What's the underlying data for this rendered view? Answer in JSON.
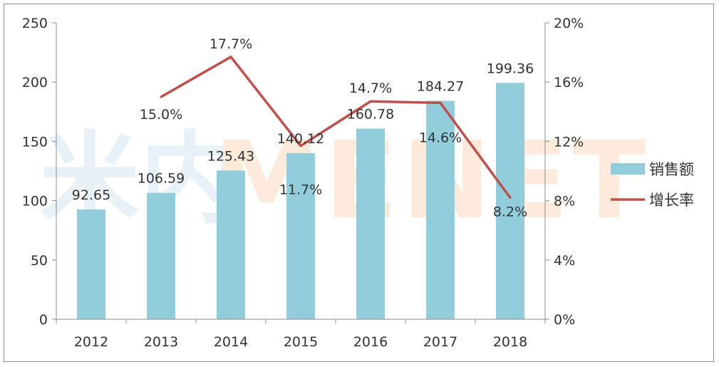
{
  "chart_data": {
    "type": "bar",
    "categories": [
      "2012",
      "2013",
      "2014",
      "2015",
      "2016",
      "2017",
      "2018"
    ],
    "series": [
      {
        "name": "销售额",
        "type": "bar",
        "axis": "left",
        "values": [
          92.65,
          106.59,
          125.43,
          140.12,
          160.78,
          184.27,
          199.36
        ],
        "labels": [
          "92.65",
          "106.59",
          "125.43",
          "140.12",
          "160.78",
          "184.27",
          "199.36"
        ],
        "color": "#92cddc"
      },
      {
        "name": "增长率",
        "type": "line",
        "axis": "right",
        "values": [
          null,
          15.0,
          17.7,
          11.7,
          14.7,
          14.6,
          8.2
        ],
        "labels": [
          "",
          "15.0%",
          "17.7%",
          "11.7%",
          "14.7%",
          "14.6%",
          "8.2%"
        ],
        "color": "#c0504d"
      }
    ],
    "ylim_left": [
      0,
      250
    ],
    "yticks_left": [
      "0",
      "50",
      "100",
      "150",
      "200",
      "250"
    ],
    "ylim_right": [
      0,
      20
    ],
    "yticks_right": [
      "0%",
      "4%",
      "8%",
      "12%",
      "16%",
      "20%"
    ],
    "legend_position": "right",
    "grid": false
  },
  "watermark": {
    "logo_text": "米内",
    "brand_text": "MENET"
  }
}
